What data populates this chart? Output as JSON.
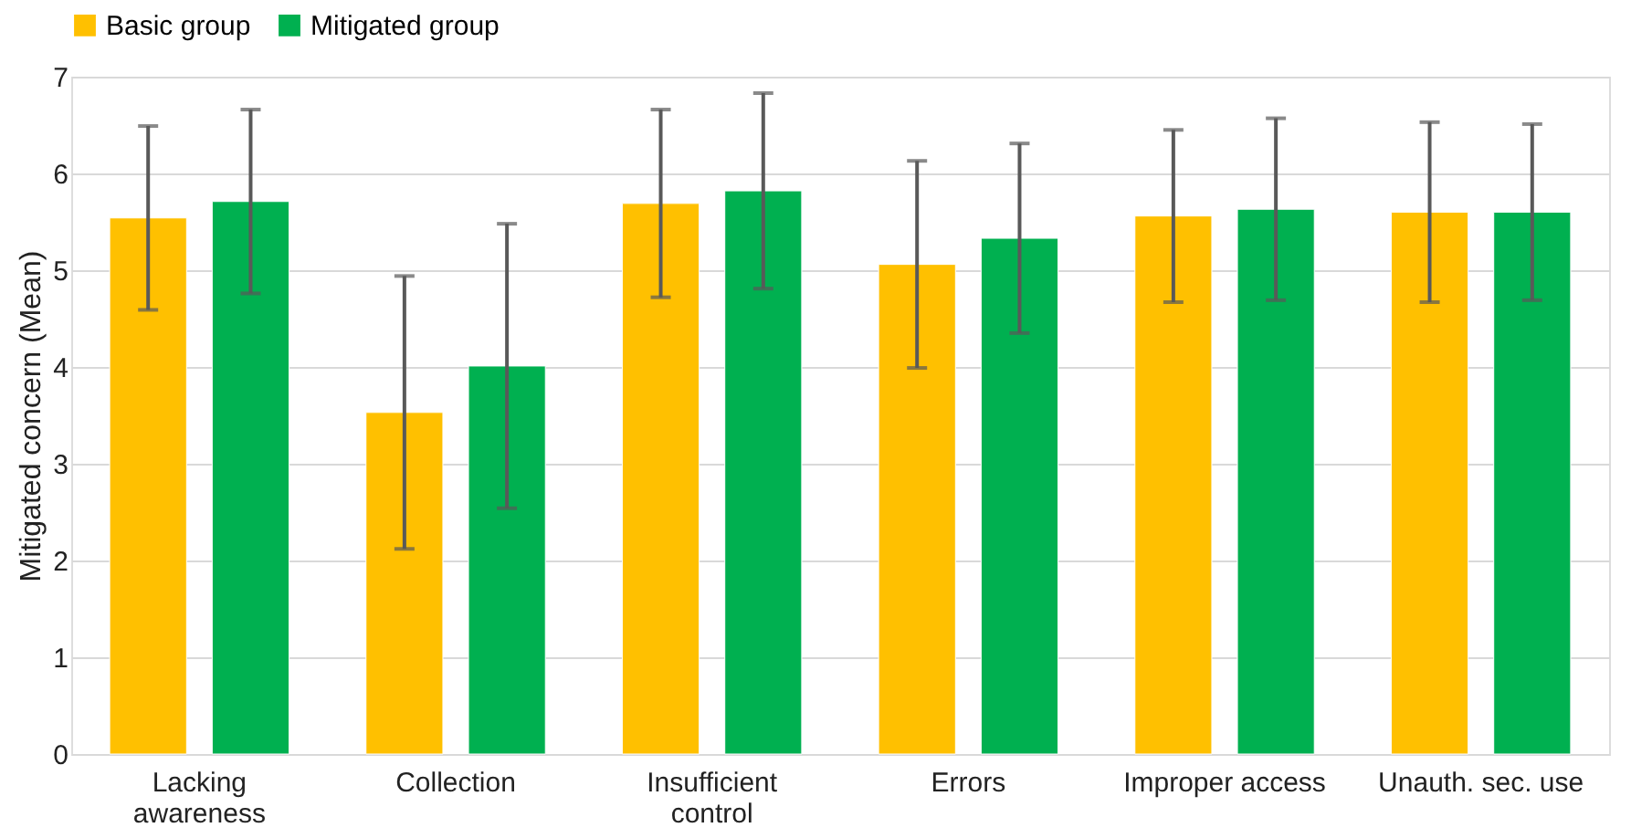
{
  "chart_data": {
    "type": "bar",
    "ylabel": "Mitigated concern (Mean)",
    "categories": [
      "Lacking awareness",
      "Collection",
      "Insufficient control",
      "Errors",
      "Improper access",
      "Unauth. sec. use"
    ],
    "series": [
      {
        "name": "Basic group",
        "color": "#ffc000",
        "values": [
          5.54,
          3.53,
          5.69,
          5.06,
          5.56,
          5.6
        ],
        "errors": [
          0.95,
          1.41,
          0.97,
          1.07,
          0.89,
          0.93
        ]
      },
      {
        "name": "Mitigated group",
        "color": "#00b050",
        "values": [
          5.71,
          4.01,
          5.82,
          5.33,
          5.63,
          5.6
        ],
        "errors": [
          0.95,
          1.47,
          1.01,
          0.98,
          0.94,
          0.91
        ]
      }
    ],
    "ylim": [
      0,
      7
    ],
    "yticks": [
      0,
      1,
      2,
      3,
      4,
      5,
      6,
      7
    ],
    "grid": "y",
    "legend": "top"
  }
}
